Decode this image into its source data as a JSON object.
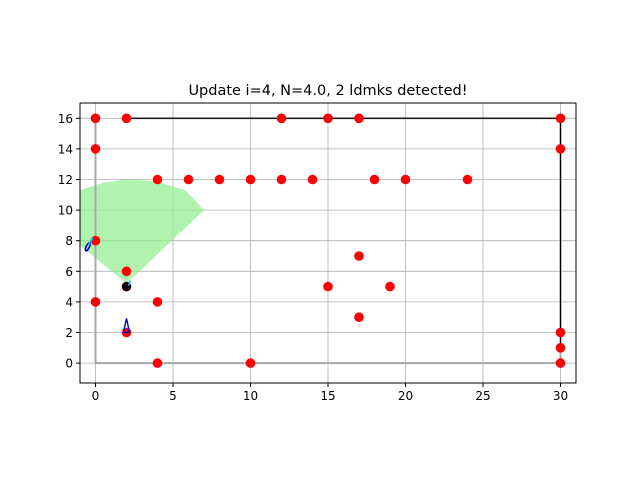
{
  "chart_data": {
    "type": "scatter",
    "title": "Update i=4, N=4.0, 2 ldmks detected!",
    "xlabel": "",
    "ylabel": "",
    "xlim": [
      -1,
      31
    ],
    "ylim": [
      -1.3,
      17
    ],
    "xticks": [
      0,
      5,
      10,
      15,
      20,
      25,
      30
    ],
    "yticks": [
      0,
      2,
      4,
      6,
      8,
      10,
      12,
      14,
      16
    ],
    "grid": true,
    "landmark_color": "#ff0000",
    "landmarks": [
      [
        0,
        16
      ],
      [
        2,
        16
      ],
      [
        12,
        16
      ],
      [
        15,
        16
      ],
      [
        17,
        16
      ],
      [
        30,
        16
      ],
      [
        0,
        14
      ],
      [
        30,
        14
      ],
      [
        4,
        12
      ],
      [
        6,
        12
      ],
      [
        8,
        12
      ],
      [
        10,
        12
      ],
      [
        12,
        12
      ],
      [
        14,
        12
      ],
      [
        18,
        12
      ],
      [
        20,
        12
      ],
      [
        24,
        12
      ],
      [
        0,
        8
      ],
      [
        17,
        7
      ],
      [
        2,
        6
      ],
      [
        15,
        5
      ],
      [
        19,
        5
      ],
      [
        2,
        5
      ],
      [
        0,
        4
      ],
      [
        4,
        4
      ],
      [
        17,
        3
      ],
      [
        2,
        2
      ],
      [
        30,
        2
      ],
      [
        30,
        1
      ],
      [
        4,
        0
      ],
      [
        10,
        0
      ],
      [
        30,
        0
      ]
    ],
    "true_path": {
      "color": "#000000",
      "points": [
        [
          2,
          16
        ],
        [
          30,
          16
        ],
        [
          30,
          1
        ]
      ]
    },
    "estimated_path": {
      "color": "#a8a8a8",
      "points": [
        [
          0,
          16
        ],
        [
          0,
          0
        ],
        [
          30,
          0
        ],
        [
          30,
          16
        ],
        [
          2,
          16
        ]
      ]
    },
    "sensor_fov": {
      "color": "#90ee90",
      "alpha": 0.72,
      "polygon": [
        [
          2,
          5.2
        ],
        [
          7,
          10
        ],
        [
          5.8,
          11.3
        ],
        [
          3.8,
          11.9
        ],
        [
          2,
          12
        ],
        [
          0.5,
          11.8
        ],
        [
          -1,
          11.3
        ],
        [
          -1,
          7.7
        ]
      ]
    },
    "robot_poses": [
      {
        "x": 2,
        "y": 5,
        "color": "#000000",
        "marker": "circle"
      },
      {
        "x": 2,
        "y": 2.2,
        "color": "#0000cc",
        "marker": "triangle"
      },
      {
        "x": -0.5,
        "y": 7.6,
        "color": "#0000cc",
        "marker": "ellipse"
      }
    ],
    "uncertainty_color": "#00bfff"
  }
}
